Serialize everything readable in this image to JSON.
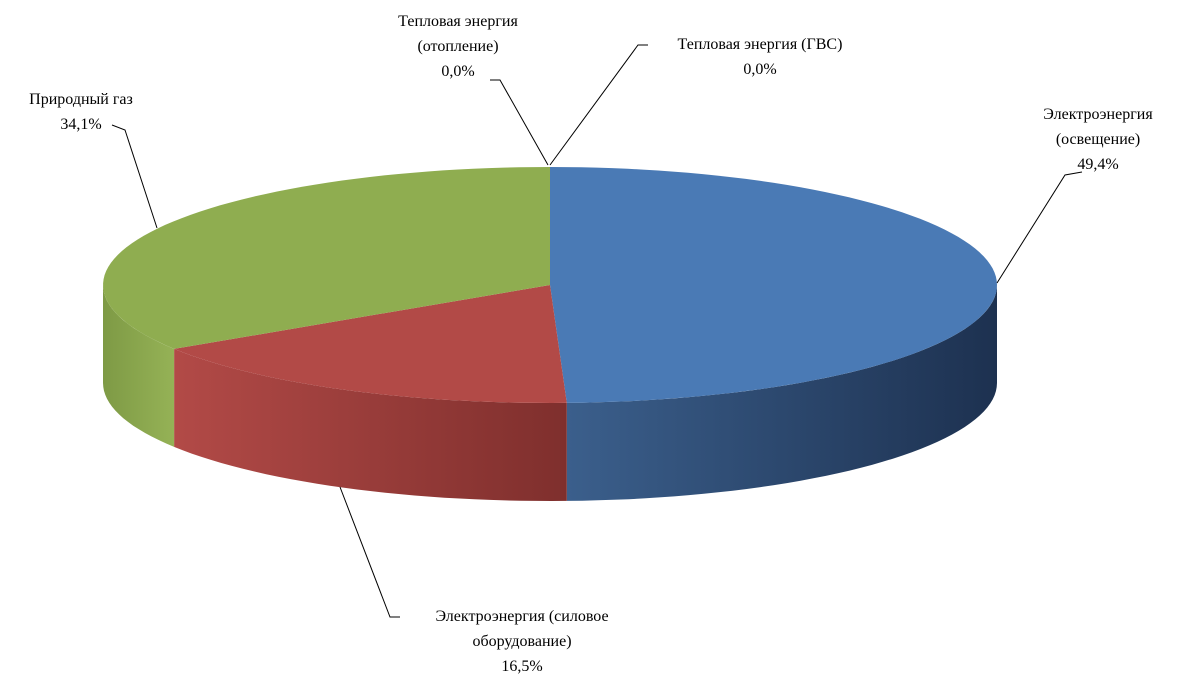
{
  "chart_data": {
    "type": "pie3d",
    "categories": [
      "Электроэнергия (освещение)",
      "Электроэнергия (силовое оборудование)",
      "Природный газ",
      "Тепловая энергия (отопление)",
      "Тепловая энергия (ГВС)"
    ],
    "values": [
      49.4,
      16.5,
      34.1,
      0.0,
      0.0
    ],
    "value_labels": [
      "49,4%",
      "16,5%",
      "34,1%",
      "0,0%",
      "0,0%"
    ],
    "colors": [
      "#4a7ab5",
      "#b24a47",
      "#8fad50",
      "#8064a2",
      "#4bacc6"
    ]
  }
}
